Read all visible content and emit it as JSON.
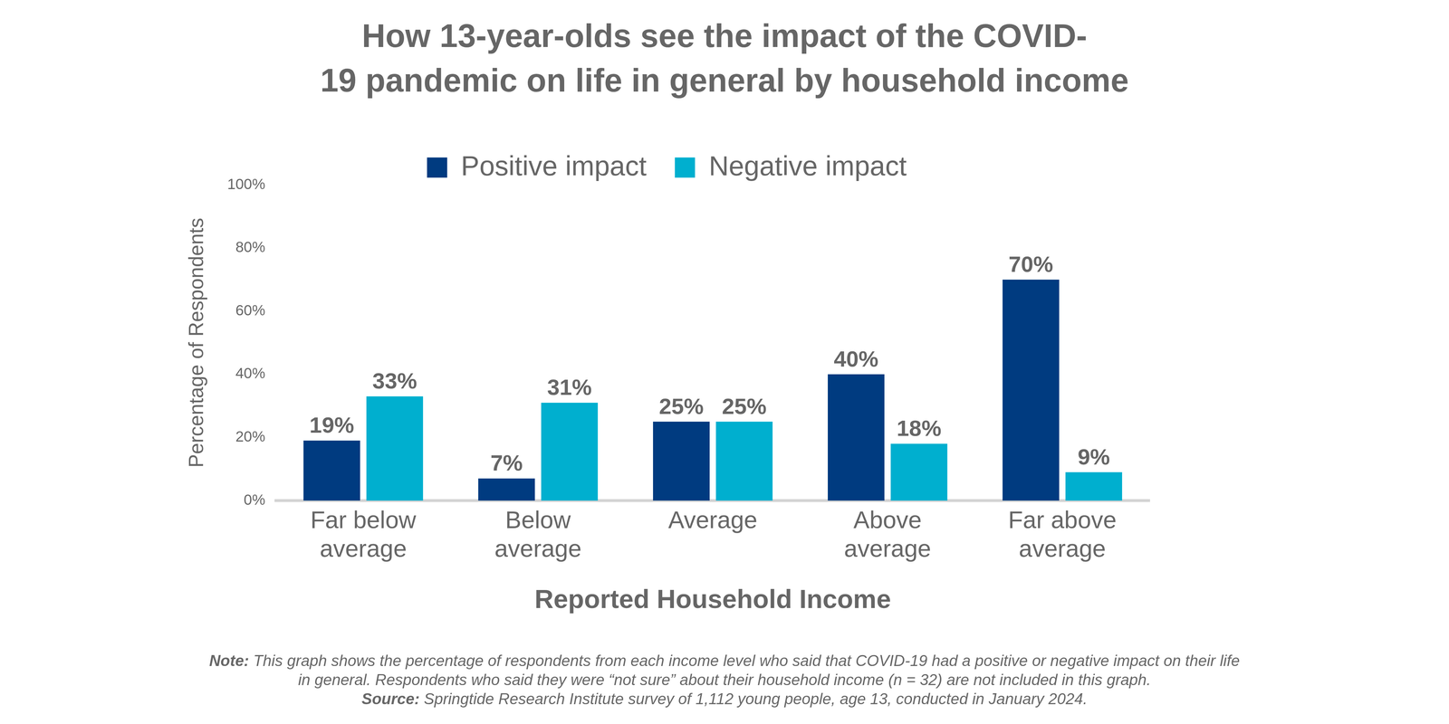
{
  "chart_data": {
    "type": "bar",
    "title": "How 13-year-olds see the impact of the COVID-19 pandemic on life in general by household income",
    "x_label": "Reported Household Income",
    "y_label": "Percentage of Respondents",
    "categories": [
      "Far below average",
      "Below average",
      "Average",
      "Above average",
      "Far above average"
    ],
    "series": [
      {
        "name": "Positive impact",
        "color": "#003b80",
        "values": [
          19,
          7,
          25,
          40,
          70
        ],
        "value_labels": [
          "19%",
          "7%",
          "25%",
          "40%",
          "70%"
        ]
      },
      {
        "name": "Negative impact",
        "color": "#00afcf",
        "values": [
          33,
          31,
          25,
          18,
          9
        ],
        "value_labels": [
          "33%",
          "31%",
          "25%",
          "18%",
          "9%"
        ]
      }
    ],
    "ylim": [
      0,
      100
    ],
    "yticks": [
      {
        "value": 0,
        "label": "0%"
      },
      {
        "value": 20,
        "label": "20%"
      },
      {
        "value": 40,
        "label": "40%"
      },
      {
        "value": 60,
        "label": "60%"
      },
      {
        "value": 80,
        "label": "80%"
      },
      {
        "value": 100,
        "label": "100%"
      }
    ],
    "grid": false,
    "legend": "top",
    "data_labels": true,
    "annotations": [
      "Note: This graph shows the percentage of respondents from each income level who said that COVID-19 had a positive or negative impact on their life in general. Respondents who said they were “not sure” about their household income (n = 32) are not included in this graph.",
      "Source: Springtide Research Institute survey of 1,112 young people, age 13, conducted in January 2024."
    ]
  }
}
